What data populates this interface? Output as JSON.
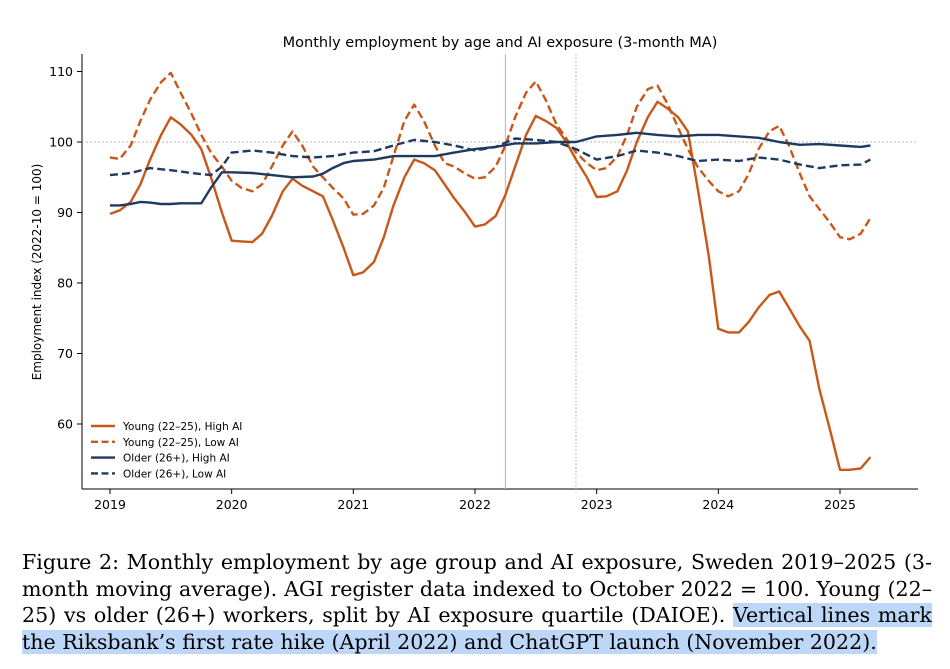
{
  "chart_data": {
    "type": "line",
    "title": "Monthly employment by age and AI exposure (3-month MA)",
    "xlabel": "",
    "ylabel": "Employment index (2022-10 = 100)",
    "xlim": [
      2018.93,
      2025.6
    ],
    "ylim": [
      53,
      113
    ],
    "xticks": [
      2019,
      2020,
      2021,
      2022,
      2023,
      2024,
      2025
    ],
    "yticks": [
      60,
      70,
      80,
      90,
      100,
      110
    ],
    "reference_hline": 100,
    "vlines": [
      {
        "x": 2022.25,
        "label": "Riksbank's first rate hike (April 2022)",
        "color": "#f4a6a6",
        "style": "solid"
      },
      {
        "x": 2022.83,
        "label": "ChatGPT launch (November 2022)",
        "color": "#8fb8de",
        "style": "dotted"
      }
    ],
    "legend_position": "lower-left",
    "series": [
      {
        "name": "Young (22–25), High AI",
        "color": "#c8581a",
        "dash": "solid",
        "points": [
          [
            2019.0,
            89.8
          ],
          [
            2019.08,
            90.3
          ],
          [
            2019.17,
            91.5
          ],
          [
            2019.25,
            94.0
          ],
          [
            2019.33,
            97.5
          ],
          [
            2019.42,
            101.0
          ],
          [
            2019.5,
            103.5
          ],
          [
            2019.58,
            102.5
          ],
          [
            2019.67,
            101.0
          ],
          [
            2019.75,
            99.0
          ],
          [
            2019.83,
            95.0
          ],
          [
            2019.92,
            90.0
          ],
          [
            2020.0,
            86.0
          ],
          [
            2020.08,
            85.9
          ],
          [
            2020.17,
            85.8
          ],
          [
            2020.25,
            87.0
          ],
          [
            2020.33,
            89.5
          ],
          [
            2020.42,
            93.0
          ],
          [
            2020.5,
            94.8
          ],
          [
            2020.58,
            93.8
          ],
          [
            2020.67,
            93.0
          ],
          [
            2020.75,
            92.3
          ],
          [
            2020.83,
            89.0
          ],
          [
            2020.92,
            85.0
          ],
          [
            2021.0,
            81.1
          ],
          [
            2021.08,
            81.5
          ],
          [
            2021.17,
            83.0
          ],
          [
            2021.25,
            86.5
          ],
          [
            2021.33,
            91.0
          ],
          [
            2021.42,
            95.0
          ],
          [
            2021.5,
            97.5
          ],
          [
            2021.58,
            97.0
          ],
          [
            2021.67,
            96.0
          ],
          [
            2021.75,
            94.0
          ],
          [
            2021.83,
            92.0
          ],
          [
            2021.92,
            90.0
          ],
          [
            2022.0,
            88.0
          ],
          [
            2022.08,
            88.3
          ],
          [
            2022.17,
            89.5
          ],
          [
            2022.25,
            92.5
          ],
          [
            2022.33,
            96.5
          ],
          [
            2022.42,
            101.0
          ],
          [
            2022.5,
            103.7
          ],
          [
            2022.58,
            103.0
          ],
          [
            2022.67,
            102.0
          ],
          [
            2022.75,
            100.0
          ],
          [
            2022.83,
            97.5
          ],
          [
            2022.92,
            95.0
          ],
          [
            2023.0,
            92.2
          ],
          [
            2023.08,
            92.3
          ],
          [
            2023.17,
            93.0
          ],
          [
            2023.25,
            96.0
          ],
          [
            2023.33,
            100.0
          ],
          [
            2023.42,
            103.5
          ],
          [
            2023.5,
            105.7
          ],
          [
            2023.58,
            104.8
          ],
          [
            2023.67,
            103.5
          ],
          [
            2023.75,
            101.5
          ],
          [
            2023.83,
            93.5
          ],
          [
            2023.92,
            84.0
          ],
          [
            2024.0,
            73.5
          ],
          [
            2024.08,
            73.0
          ],
          [
            2024.17,
            73.0
          ],
          [
            2024.25,
            74.5
          ],
          [
            2024.33,
            76.5
          ],
          [
            2024.42,
            78.3
          ],
          [
            2024.5,
            78.8
          ],
          [
            2024.58,
            76.5
          ],
          [
            2024.67,
            73.8
          ],
          [
            2024.75,
            71.8
          ],
          [
            2024.83,
            65.0
          ],
          [
            2024.92,
            59.0
          ],
          [
            2025.0,
            53.5
          ],
          [
            2025.08,
            53.5
          ],
          [
            2025.17,
            53.7
          ],
          [
            2025.25,
            55.3
          ]
        ]
      },
      {
        "name": "Young (22–25), Low AI",
        "color": "#c8581a",
        "dash": "dashed",
        "points": [
          [
            2019.0,
            97.8
          ],
          [
            2019.08,
            97.6
          ],
          [
            2019.17,
            99.5
          ],
          [
            2019.25,
            103.0
          ],
          [
            2019.33,
            106.0
          ],
          [
            2019.42,
            108.5
          ],
          [
            2019.5,
            109.8
          ],
          [
            2019.58,
            107.0
          ],
          [
            2019.67,
            104.0
          ],
          [
            2019.75,
            101.0
          ],
          [
            2019.83,
            98.5
          ],
          [
            2019.92,
            96.5
          ],
          [
            2020.0,
            94.5
          ],
          [
            2020.08,
            93.5
          ],
          [
            2020.17,
            93.0
          ],
          [
            2020.25,
            94.0
          ],
          [
            2020.33,
            96.5
          ],
          [
            2020.42,
            99.5
          ],
          [
            2020.5,
            101.5
          ],
          [
            2020.58,
            99.5
          ],
          [
            2020.67,
            96.5
          ],
          [
            2020.75,
            95.0
          ],
          [
            2020.83,
            93.5
          ],
          [
            2020.92,
            92.0
          ],
          [
            2021.0,
            89.7
          ],
          [
            2021.08,
            89.8
          ],
          [
            2021.17,
            91.0
          ],
          [
            2021.25,
            93.5
          ],
          [
            2021.33,
            98.0
          ],
          [
            2021.42,
            103.0
          ],
          [
            2021.5,
            105.3
          ],
          [
            2021.58,
            103.0
          ],
          [
            2021.67,
            99.5
          ],
          [
            2021.75,
            97.0
          ],
          [
            2021.83,
            96.5
          ],
          [
            2021.92,
            95.5
          ],
          [
            2022.0,
            94.8
          ],
          [
            2022.08,
            95.0
          ],
          [
            2022.17,
            96.5
          ],
          [
            2022.25,
            99.5
          ],
          [
            2022.33,
            103.5
          ],
          [
            2022.42,
            107.0
          ],
          [
            2022.5,
            108.6
          ],
          [
            2022.58,
            106.0
          ],
          [
            2022.67,
            102.5
          ],
          [
            2022.75,
            100.5
          ],
          [
            2022.83,
            98.5
          ],
          [
            2022.92,
            97.0
          ],
          [
            2023.0,
            96.0
          ],
          [
            2023.08,
            96.3
          ],
          [
            2023.17,
            98.0
          ],
          [
            2023.25,
            101.0
          ],
          [
            2023.33,
            105.0
          ],
          [
            2023.42,
            107.5
          ],
          [
            2023.5,
            108.0
          ],
          [
            2023.58,
            105.5
          ],
          [
            2023.67,
            102.0
          ],
          [
            2023.75,
            99.0
          ],
          [
            2023.83,
            96.5
          ],
          [
            2023.92,
            94.5
          ],
          [
            2024.0,
            93.0
          ],
          [
            2024.08,
            92.3
          ],
          [
            2024.17,
            93.0
          ],
          [
            2024.25,
            95.5
          ],
          [
            2024.33,
            99.0
          ],
          [
            2024.42,
            101.5
          ],
          [
            2024.5,
            102.3
          ],
          [
            2024.58,
            99.5
          ],
          [
            2024.67,
            95.5
          ],
          [
            2024.75,
            92.3
          ],
          [
            2024.83,
            90.5
          ],
          [
            2024.92,
            88.5
          ],
          [
            2025.0,
            86.5
          ],
          [
            2025.08,
            86.2
          ],
          [
            2025.17,
            87.0
          ],
          [
            2025.25,
            89.2
          ]
        ]
      },
      {
        "name": "Older (26+), High AI",
        "color": "#1f3a5f",
        "dash": "solid",
        "points": [
          [
            2019.0,
            91.0
          ],
          [
            2019.08,
            91.0
          ],
          [
            2019.17,
            91.2
          ],
          [
            2019.25,
            91.5
          ],
          [
            2019.33,
            91.4
          ],
          [
            2019.42,
            91.2
          ],
          [
            2019.5,
            91.2
          ],
          [
            2019.58,
            91.3
          ],
          [
            2019.67,
            91.3
          ],
          [
            2019.75,
            91.3
          ],
          [
            2019.83,
            93.5
          ],
          [
            2019.92,
            95.7
          ],
          [
            2020.0,
            95.7
          ],
          [
            2020.17,
            95.6
          ],
          [
            2020.33,
            95.3
          ],
          [
            2020.5,
            95.0
          ],
          [
            2020.67,
            95.1
          ],
          [
            2020.75,
            95.5
          ],
          [
            2020.83,
            96.3
          ],
          [
            2020.92,
            97.0
          ],
          [
            2021.0,
            97.3
          ],
          [
            2021.17,
            97.5
          ],
          [
            2021.33,
            98.0
          ],
          [
            2021.5,
            98.0
          ],
          [
            2021.67,
            98.0
          ],
          [
            2021.83,
            98.5
          ],
          [
            2022.0,
            99.0
          ],
          [
            2022.17,
            99.3
          ],
          [
            2022.33,
            99.8
          ],
          [
            2022.5,
            99.8
          ],
          [
            2022.67,
            100.0
          ],
          [
            2022.83,
            100.0
          ],
          [
            2023.0,
            100.8
          ],
          [
            2023.17,
            101.0
          ],
          [
            2023.33,
            101.3
          ],
          [
            2023.5,
            101.0
          ],
          [
            2023.67,
            100.8
          ],
          [
            2023.83,
            101.0
          ],
          [
            2024.0,
            101.0
          ],
          [
            2024.17,
            100.8
          ],
          [
            2024.33,
            100.6
          ],
          [
            2024.5,
            100.0
          ],
          [
            2024.67,
            99.6
          ],
          [
            2024.83,
            99.7
          ],
          [
            2025.0,
            99.5
          ],
          [
            2025.17,
            99.3
          ],
          [
            2025.25,
            99.5
          ]
        ]
      },
      {
        "name": "Older (26+), Low AI",
        "color": "#1f3a5f",
        "dash": "dashed",
        "points": [
          [
            2019.0,
            95.3
          ],
          [
            2019.17,
            95.6
          ],
          [
            2019.33,
            96.3
          ],
          [
            2019.5,
            96.0
          ],
          [
            2019.67,
            95.6
          ],
          [
            2019.83,
            95.3
          ],
          [
            2019.92,
            96.5
          ],
          [
            2020.0,
            98.5
          ],
          [
            2020.17,
            98.8
          ],
          [
            2020.33,
            98.5
          ],
          [
            2020.5,
            98.0
          ],
          [
            2020.67,
            97.8
          ],
          [
            2020.83,
            98.0
          ],
          [
            2021.0,
            98.5
          ],
          [
            2021.17,
            98.7
          ],
          [
            2021.33,
            99.5
          ],
          [
            2021.5,
            100.3
          ],
          [
            2021.67,
            100.0
          ],
          [
            2021.83,
            99.5
          ],
          [
            2022.0,
            98.8
          ],
          [
            2022.17,
            99.3
          ],
          [
            2022.33,
            100.5
          ],
          [
            2022.5,
            100.3
          ],
          [
            2022.67,
            100.0
          ],
          [
            2022.83,
            99.0
          ],
          [
            2023.0,
            97.5
          ],
          [
            2023.17,
            98.0
          ],
          [
            2023.33,
            98.8
          ],
          [
            2023.5,
            98.5
          ],
          [
            2023.67,
            98.0
          ],
          [
            2023.83,
            97.3
          ],
          [
            2024.0,
            97.5
          ],
          [
            2024.17,
            97.3
          ],
          [
            2024.33,
            97.8
          ],
          [
            2024.5,
            97.5
          ],
          [
            2024.67,
            96.8
          ],
          [
            2024.83,
            96.3
          ],
          [
            2025.0,
            96.7
          ],
          [
            2025.17,
            96.8
          ],
          [
            2025.25,
            97.5
          ]
        ]
      }
    ]
  },
  "caption": {
    "text": "Figure 2: Monthly employment by age group and AI exposure, Sweden 2019–2025 (3-month moving average). AGI register data indexed to October 2022 = 100. Young (22–25) vs older (26+) workers, split by AI exposure quartile (DAIOE). ",
    "highlighted": "Vertical lines mark the Riksbank’s first rate hike (April 2022) and ChatGPT launch (November 2022).",
    "highlight_color": "#bcd7f7"
  }
}
